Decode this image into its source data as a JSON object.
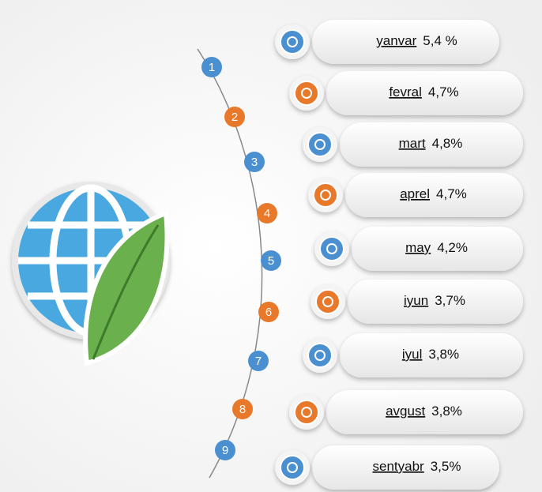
{
  "items": [
    {
      "number": 1,
      "month": "yanvar",
      "value": "5,4 %"
    },
    {
      "number": 2,
      "month": "fevral",
      "value": "4,7%"
    },
    {
      "number": 3,
      "month": "mart",
      "value": "4,8%"
    },
    {
      "number": 4,
      "month": "aprel",
      "value": "4,7%"
    },
    {
      "number": 5,
      "month": "may",
      "value": "4,2%"
    },
    {
      "number": 6,
      "month": "iyun",
      "value": "3,7%"
    },
    {
      "number": 7,
      "month": "iyul",
      "value": "3,8%"
    },
    {
      "number": 8,
      "month": "avgust",
      "value": "3,8%"
    },
    {
      "number": 9,
      "month": "sentyabr",
      "value": "3,5%"
    }
  ]
}
